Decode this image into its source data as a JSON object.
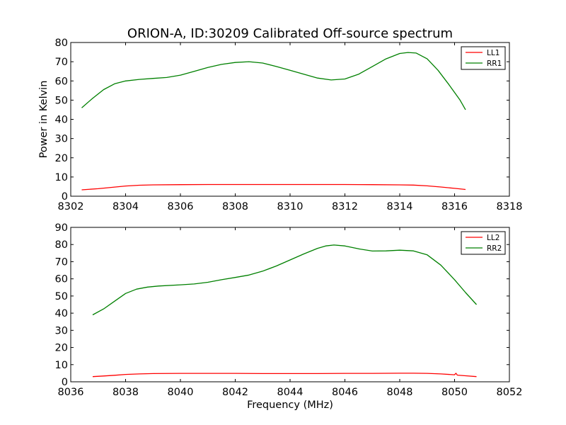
{
  "figure": {
    "title": "ORION-A, ID:30209 Calibrated Off-source spectrum",
    "xlabel": "Frequency (MHz)"
  },
  "chart_data": [
    {
      "type": "line",
      "ylabel": "Power in Kelvin",
      "xlim": [
        8302,
        8318
      ],
      "ylim": [
        0,
        80
      ],
      "xticks": [
        8302,
        8304,
        8306,
        8308,
        8310,
        8312,
        8314,
        8316,
        8318
      ],
      "yticks": [
        0,
        10,
        20,
        30,
        40,
        50,
        60,
        70,
        80
      ],
      "grid": false,
      "legend_position": "top-right",
      "series": [
        {
          "name": "LL1",
          "color": "#ff0000",
          "x": [
            8302.4,
            8303,
            8303.5,
            8304,
            8304.5,
            8305,
            8306,
            8307,
            8308,
            8309,
            8310,
            8311,
            8312,
            8313,
            8314,
            8314.5,
            8315,
            8315.5,
            8316,
            8316.4
          ],
          "y": [
            3.3,
            3.9,
            4.6,
            5.3,
            5.7,
            5.9,
            6.0,
            6.1,
            6.1,
            6.1,
            6.1,
            6.1,
            6.1,
            6.0,
            5.9,
            5.8,
            5.4,
            4.8,
            4.1,
            3.5
          ]
        },
        {
          "name": "RR1",
          "color": "#008000",
          "x": [
            8302.4,
            8302.8,
            8303.2,
            8303.6,
            8304,
            8304.5,
            8305,
            8305.5,
            8306,
            8306.5,
            8307,
            8307.5,
            8308,
            8308.5,
            8309,
            8309.5,
            8310,
            8310.5,
            8311,
            8311.5,
            8312,
            8312.5,
            8313,
            8313.5,
            8314,
            8314.3,
            8314.6,
            8315,
            8315.4,
            8315.8,
            8316.2,
            8316.4
          ],
          "y": [
            46,
            51,
            55.5,
            58.5,
            60,
            60.8,
            61.3,
            61.8,
            63,
            65,
            67,
            68.6,
            69.6,
            70,
            69.3,
            67.5,
            65.5,
            63.5,
            61.5,
            60.5,
            61,
            63.5,
            67.5,
            71.5,
            74.3,
            74.8,
            74.5,
            71.5,
            65.5,
            58,
            50,
            45
          ]
        }
      ]
    },
    {
      "type": "line",
      "ylabel": "",
      "xlim": [
        8036,
        8052
      ],
      "ylim": [
        0,
        90
      ],
      "xticks": [
        8036,
        8038,
        8040,
        8042,
        8044,
        8046,
        8048,
        8050,
        8052
      ],
      "yticks": [
        0,
        10,
        20,
        30,
        40,
        50,
        60,
        70,
        80,
        90
      ],
      "grid": false,
      "legend_position": "top-right",
      "series": [
        {
          "name": "LL2",
          "color": "#ff0000",
          "x": [
            8036.8,
            8037.2,
            8037.6,
            8038,
            8038.5,
            8039,
            8040,
            8041,
            8042,
            8043,
            8044,
            8045,
            8046,
            8047,
            8048,
            8048.5,
            8049,
            8049.5,
            8050,
            8050.05,
            8050.1,
            8050.4,
            8050.8
          ],
          "y": [
            3,
            3.4,
            3.8,
            4.3,
            4.6,
            4.8,
            4.9,
            4.9,
            4.9,
            4.8,
            4.8,
            4.8,
            4.9,
            4.9,
            5.0,
            5.0,
            4.9,
            4.6,
            4.1,
            5.0,
            3.9,
            3.5,
            3.0
          ]
        },
        {
          "name": "RR2",
          "color": "#008000",
          "x": [
            8036.8,
            8037.2,
            8037.6,
            8038,
            8038.4,
            8038.8,
            8039.2,
            8040,
            8040.5,
            8041,
            8041.5,
            8042,
            8042.5,
            8043,
            8043.5,
            8044,
            8044.5,
            8045,
            8045.3,
            8045.6,
            8046,
            8046.5,
            8047,
            8047.5,
            8048,
            8048.5,
            8049,
            8049.5,
            8050,
            8050.4,
            8050.8
          ],
          "y": [
            39,
            42.5,
            47,
            51.5,
            54,
            55.2,
            55.8,
            56.5,
            57,
            58,
            59.5,
            60.8,
            62.2,
            64.5,
            67.5,
            71,
            74.5,
            77.8,
            79.2,
            79.7,
            79.2,
            77.5,
            76.2,
            76.3,
            76.7,
            76.3,
            74,
            68,
            59.5,
            52,
            45
          ]
        }
      ]
    }
  ]
}
